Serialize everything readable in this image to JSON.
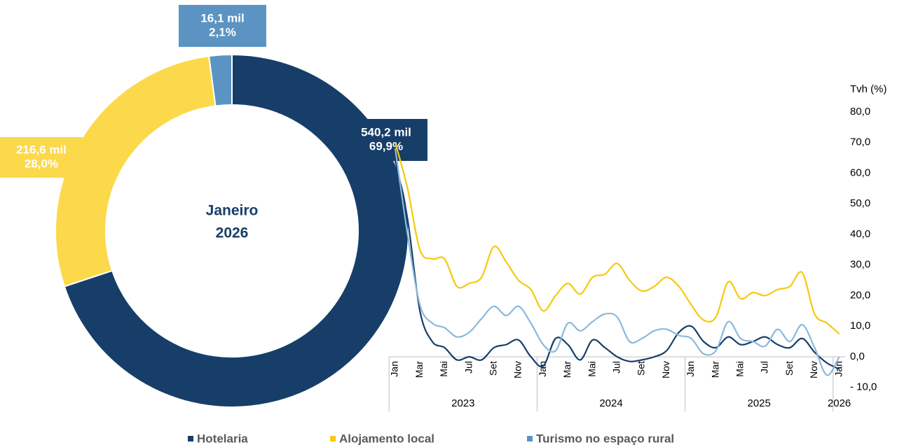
{
  "chart_data": [
    {
      "type": "donut",
      "center_label": [
        "Janeiro",
        "2026"
      ],
      "values": [
        540.2,
        216.6,
        16.1
      ],
      "value_labels": [
        "540,2 mil",
        "216,6 mil",
        "16,1 mil"
      ],
      "percent_labels": [
        "69,9%",
        "28,0%",
        "2,1%"
      ],
      "colors": [
        "#173e69",
        "#fbd94a",
        "#5b94c2"
      ]
    },
    {
      "type": "line",
      "y_axis_label": "Tvh (%)",
      "categories": [
        "Jan",
        null,
        "Mar",
        null,
        "Mai",
        null,
        "Jul",
        null,
        "Set",
        null,
        "Nov",
        null,
        "Jan",
        null,
        "Mar",
        null,
        "Mai",
        null,
        "Jul",
        null,
        "Set",
        null,
        "Nov",
        null,
        "Jan",
        null,
        "Mar",
        null,
        "Mai",
        null,
        "Jul",
        null,
        "Set",
        null,
        "Nov",
        null,
        "Jan"
      ],
      "groups": [
        {
          "label": "2023",
          "size": 12
        },
        {
          "label": "2024",
          "size": 12
        },
        {
          "label": "2025",
          "size": 12
        },
        {
          "label": "2026",
          "size": 1
        }
      ],
      "ylim": [
        -10,
        80
      ],
      "yticks": [
        {
          "value": -10,
          "label": "- 10,0"
        },
        {
          "value": 0,
          "label": "0,0"
        },
        {
          "value": 10,
          "label": "10,0"
        },
        {
          "value": 20,
          "label": "20,0"
        },
        {
          "value": 30,
          "label": "30,0"
        },
        {
          "value": 40,
          "label": "40,0"
        },
        {
          "value": 50,
          "label": "50,0"
        },
        {
          "value": 60,
          "label": "60,0"
        },
        {
          "value": 70,
          "label": "70,0"
        },
        {
          "value": 80,
          "label": "80,0"
        }
      ],
      "series": [
        {
          "name": "Hotelaria",
          "color": "#173e69",
          "values": [
            64,
            45,
            15,
            5,
            3,
            -1,
            0,
            -1,
            3,
            4,
            5.5,
            0,
            -3,
            6,
            4,
            -1,
            5.5,
            3,
            0,
            -1.5,
            -1,
            0,
            2,
            8,
            10,
            5,
            3,
            6.5,
            4,
            5,
            6.5,
            4,
            3,
            6,
            1.5,
            -2,
            -4
          ]
        },
        {
          "name": "Alojamento local",
          "color": "#f5c90f",
          "values": [
            70,
            55,
            35,
            32,
            32,
            23,
            24,
            26,
            36,
            31,
            25,
            22,
            15,
            20,
            24,
            20.5,
            26,
            27,
            30.5,
            25,
            21.5,
            23,
            26,
            23,
            17,
            12,
            13,
            24.5,
            19,
            21,
            20,
            22,
            23,
            27.5,
            14,
            11,
            7.5
          ]
        },
        {
          "name": "Turismo no espaço rural",
          "color": "#8bb9dc",
          "values": [
            68,
            40,
            17,
            11,
            9.5,
            6.5,
            8,
            12.5,
            16.5,
            13.5,
            16.5,
            11,
            4,
            2,
            11,
            8.5,
            11.5,
            14,
            13,
            5,
            6,
            8.5,
            9,
            7,
            6,
            1,
            2,
            11.5,
            6,
            5,
            3.5,
            9,
            5,
            10.5,
            3,
            -6,
            0
          ]
        }
      ],
      "legend": "bottom"
    }
  ]
}
